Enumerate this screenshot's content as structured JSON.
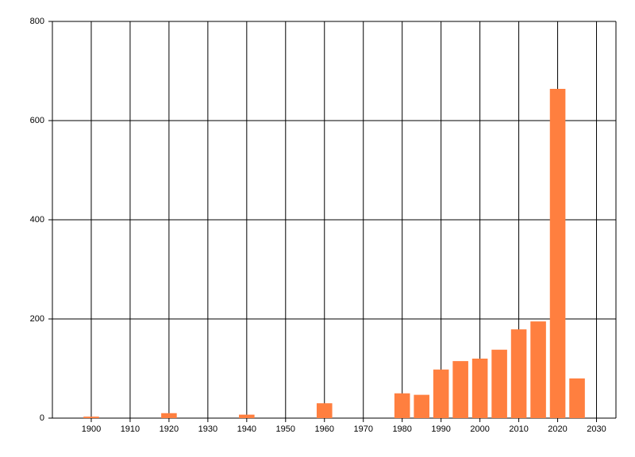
{
  "chart_data": {
    "type": "bar",
    "x": [
      1900,
      1920,
      1940,
      1960,
      1980,
      1985,
      1990,
      1995,
      2000,
      2005,
      2010,
      2015,
      2020,
      2025
    ],
    "values": [
      3,
      10,
      7,
      30,
      50,
      47,
      98,
      115,
      120,
      138,
      179,
      195,
      664,
      80
    ],
    "color": "#ff7f3f",
    "xlim": [
      1890,
      2035
    ],
    "xticks": [
      1900,
      1910,
      1920,
      1930,
      1940,
      1950,
      1960,
      1970,
      1980,
      1990,
      2000,
      2010,
      2020,
      2030
    ],
    "ylim": [
      0,
      800
    ],
    "yticks": [
      0,
      200,
      400,
      600,
      800
    ],
    "grid": true
  }
}
